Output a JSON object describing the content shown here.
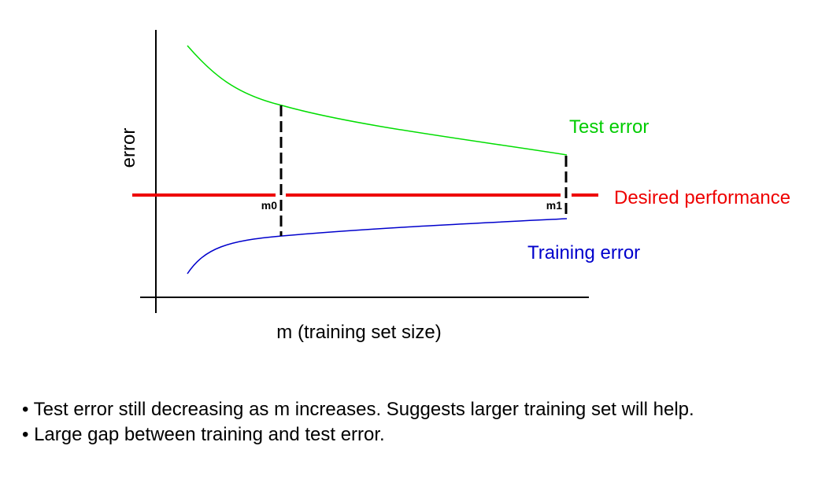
{
  "diagram": {
    "ylabel": "error",
    "xlabel": "m (training set size)",
    "curves": {
      "test": {
        "label": "Test error",
        "color": "#00dd00"
      },
      "training": {
        "label": "Training error",
        "color": "#0000cc"
      },
      "desired": {
        "label": "Desired performance",
        "color": "#ee0000"
      }
    },
    "markers": [
      {
        "label": "m0"
      },
      {
        "label": "m1"
      }
    ]
  },
  "notes": [
    {
      "bullet": "•",
      "text": " Test error still decreasing as m increases.  Suggests larger training set will help."
    },
    {
      "bullet": "•",
      "text": " Large gap between training and test error."
    }
  ]
}
